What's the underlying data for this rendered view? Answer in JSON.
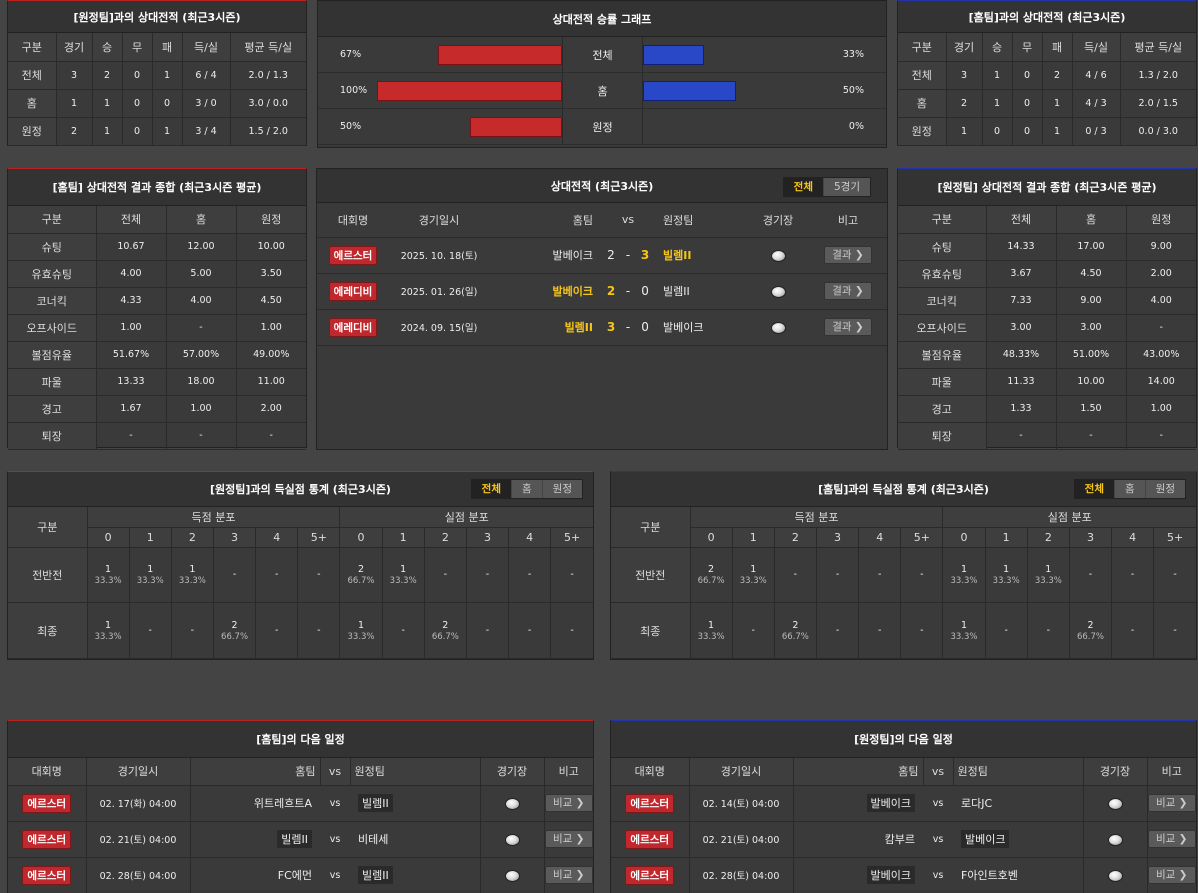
{
  "h2h_away": {
    "title": "[원정팀]과의 상대전적 (최근3시즌)",
    "headers": [
      "구분",
      "경기",
      "승",
      "무",
      "패",
      "득/실",
      "평균 득/실"
    ],
    "rows": [
      [
        "전체",
        "3",
        "2",
        "0",
        "1",
        "6 / 4",
        "2.0 / 1.3"
      ],
      [
        "홈",
        "1",
        "1",
        "0",
        "0",
        "3 / 0",
        "3.0 / 0.0"
      ],
      [
        "원정",
        "2",
        "1",
        "0",
        "1",
        "3 / 4",
        "1.5 / 2.0"
      ]
    ]
  },
  "graph": {
    "title": "상대전적 승률 그래프",
    "rows": [
      {
        "label": "전체",
        "left": "67%",
        "right": "33%",
        "left_val": 67,
        "right_val": 33
      },
      {
        "label": "홈",
        "left": "100%",
        "right": "50%",
        "left_val": 100,
        "right_val": 50
      },
      {
        "label": "원정",
        "left": "50%",
        "right": "0%",
        "left_val": 50,
        "right_val": 0
      }
    ],
    "colors": {
      "home": "#c62a2a",
      "away": "#2848c8"
    }
  },
  "h2h_home": {
    "title": "[홈팀]과의 상대전적 (최근3시즌)",
    "headers": [
      "구분",
      "경기",
      "승",
      "무",
      "패",
      "득/실",
      "평균 득/실"
    ],
    "rows": [
      [
        "전체",
        "3",
        "1",
        "0",
        "2",
        "4 / 6",
        "1.3 / 2.0"
      ],
      [
        "홈",
        "2",
        "1",
        "0",
        "1",
        "4 / 3",
        "2.0 / 1.5"
      ],
      [
        "원정",
        "1",
        "0",
        "0",
        "1",
        "0 / 3",
        "0.0 / 3.0"
      ]
    ]
  },
  "summary_home": {
    "title": "[홈팀] 상대전적 결과 종합 (최근3시즌 평균)",
    "headers": [
      "구분",
      "전체",
      "홈",
      "원정"
    ],
    "rows": [
      [
        "슈팅",
        "10.67",
        "12.00",
        "10.00"
      ],
      [
        "유효슈팅",
        "4.00",
        "5.00",
        "3.50"
      ],
      [
        "코너킥",
        "4.33",
        "4.00",
        "4.50"
      ],
      [
        "오프사이드",
        "1.00",
        "-",
        "1.00"
      ],
      [
        "볼점유율",
        "51.67%",
        "57.00%",
        "49.00%"
      ],
      [
        "파울",
        "13.33",
        "18.00",
        "11.00"
      ],
      [
        "경고",
        "1.67",
        "1.00",
        "2.00"
      ],
      [
        "퇴장",
        "-",
        "-",
        "-"
      ]
    ]
  },
  "matches": {
    "title": "상대전적 (최근3시즌)",
    "tabs": [
      "전체",
      "5경기"
    ],
    "headers": {
      "league": "대회명",
      "date": "경기일시",
      "home": "홈팀",
      "vs": "vs",
      "away": "원정팀",
      "venue": "경기장",
      "note": "비고"
    },
    "rows": [
      {
        "league": "에르스터",
        "date": "2025. 10. 18(토)",
        "home": "발베이크",
        "hs": "2",
        "as": "3",
        "away": "빌렘II",
        "winner": "away",
        "btn": "결과 ❯"
      },
      {
        "league": "에레디비",
        "date": "2025. 01. 26(일)",
        "home": "발베이크",
        "hs": "2",
        "as": "0",
        "away": "빌렘II",
        "winner": "home",
        "btn": "결과 ❯"
      },
      {
        "league": "에레디비",
        "date": "2024. 09. 15(일)",
        "home": "빌렘II",
        "hs": "3",
        "as": "0",
        "away": "발베이크",
        "winner": "home",
        "btn": "결과 ❯"
      }
    ]
  },
  "summary_away": {
    "title": "[원정팀] 상대전적 결과 종합 (최근3시즌 평균)",
    "headers": [
      "구분",
      "전체",
      "홈",
      "원정"
    ],
    "rows": [
      [
        "슈팅",
        "14.33",
        "17.00",
        "9.00"
      ],
      [
        "유효슈팅",
        "3.67",
        "4.50",
        "2.00"
      ],
      [
        "코너킥",
        "7.33",
        "9.00",
        "4.00"
      ],
      [
        "오프사이드",
        "3.00",
        "3.00",
        "-"
      ],
      [
        "볼점유율",
        "48.33%",
        "51.00%",
        "43.00%"
      ],
      [
        "파울",
        "11.33",
        "10.00",
        "14.00"
      ],
      [
        "경고",
        "1.33",
        "1.50",
        "1.00"
      ],
      [
        "퇴장",
        "-",
        "-",
        "-"
      ]
    ]
  },
  "goals_away": {
    "title": "[원정팀]과의 득실점 통계 (최근3시즌)",
    "tabs": [
      "전체",
      "홈",
      "원정"
    ],
    "col_label": "구분",
    "scored": "득점 분포",
    "conceded": "실점 분포",
    "nums": [
      "0",
      "1",
      "2",
      "3",
      "4",
      "5+"
    ],
    "rows": [
      {
        "label": "전반전",
        "cells": [
          [
            "1",
            "33.3%"
          ],
          [
            "1",
            "33.3%"
          ],
          [
            "1",
            "33.3%"
          ],
          [
            "-",
            ""
          ],
          [
            "-",
            ""
          ],
          [
            "-",
            ""
          ],
          [
            "2",
            "66.7%"
          ],
          [
            "1",
            "33.3%"
          ],
          [
            "-",
            ""
          ],
          [
            "-",
            ""
          ],
          [
            "-",
            ""
          ],
          [
            "-",
            ""
          ]
        ]
      },
      {
        "label": "최종",
        "cells": [
          [
            "1",
            "33.3%"
          ],
          [
            "-",
            ""
          ],
          [
            "-",
            ""
          ],
          [
            "2",
            "66.7%"
          ],
          [
            "-",
            ""
          ],
          [
            "-",
            ""
          ],
          [
            "1",
            "33.3%"
          ],
          [
            "-",
            ""
          ],
          [
            "2",
            "66.7%"
          ],
          [
            "-",
            ""
          ],
          [
            "-",
            ""
          ],
          [
            "-",
            ""
          ]
        ]
      }
    ]
  },
  "goals_home": {
    "title": "[홈팀]과의 득실점 통계 (최근3시즌)",
    "tabs": [
      "전체",
      "홈",
      "원정"
    ],
    "col_label": "구분",
    "scored": "득점 분포",
    "conceded": "실점 분포",
    "nums": [
      "0",
      "1",
      "2",
      "3",
      "4",
      "5+"
    ],
    "rows": [
      {
        "label": "전반전",
        "cells": [
          [
            "2",
            "66.7%"
          ],
          [
            "1",
            "33.3%"
          ],
          [
            "-",
            ""
          ],
          [
            "-",
            ""
          ],
          [
            "-",
            ""
          ],
          [
            "-",
            ""
          ],
          [
            "1",
            "33.3%"
          ],
          [
            "1",
            "33.3%"
          ],
          [
            "1",
            "33.3%"
          ],
          [
            "-",
            ""
          ],
          [
            "-",
            ""
          ],
          [
            "-",
            ""
          ]
        ]
      },
      {
        "label": "최종",
        "cells": [
          [
            "1",
            "33.3%"
          ],
          [
            "-",
            ""
          ],
          [
            "2",
            "66.7%"
          ],
          [
            "-",
            ""
          ],
          [
            "-",
            ""
          ],
          [
            "-",
            ""
          ],
          [
            "1",
            "33.3%"
          ],
          [
            "-",
            ""
          ],
          [
            "-",
            ""
          ],
          [
            "2",
            "66.7%"
          ],
          [
            "-",
            ""
          ],
          [
            "-",
            ""
          ]
        ]
      }
    ]
  },
  "next_home": {
    "title": "[홈팀]의 다음 일정",
    "headers": {
      "league": "대회명",
      "date": "경기일시",
      "home": "홈팀",
      "vs": "vs",
      "away": "원정팀",
      "venue": "경기장",
      "note": "비고"
    },
    "rows": [
      {
        "league": "에르스터",
        "date": "02. 17(화) 04:00",
        "home": "위트레흐트A",
        "away": "빌렘II",
        "boxed": "away",
        "btn": "비교 ❯"
      },
      {
        "league": "에르스터",
        "date": "02. 21(토) 04:00",
        "home": "빌렘II",
        "away": "비테세",
        "boxed": "home",
        "btn": "비교 ❯"
      },
      {
        "league": "에르스터",
        "date": "02. 28(토) 04:00",
        "home": "FC에먼",
        "away": "빌렘II",
        "boxed": "away",
        "btn": "비교 ❯"
      }
    ]
  },
  "next_away": {
    "title": "[원정팀]의 다음 일정",
    "headers": {
      "league": "대회명",
      "date": "경기일시",
      "home": "홈팀",
      "vs": "vs",
      "away": "원정팀",
      "venue": "경기장",
      "note": "비고"
    },
    "rows": [
      {
        "league": "에르스터",
        "date": "02. 14(토) 04:00",
        "home": "발베이크",
        "away": "로다JC",
        "boxed": "home",
        "btn": "비교 ❯"
      },
      {
        "league": "에르스터",
        "date": "02. 21(토) 04:00",
        "home": "캄부르",
        "away": "발베이크",
        "boxed": "away",
        "btn": "비교 ❯"
      },
      {
        "league": "에르스터",
        "date": "02. 28(토) 04:00",
        "home": "발베이크",
        "away": "F아인트호벤",
        "boxed": "home",
        "btn": "비교 ❯"
      }
    ]
  }
}
